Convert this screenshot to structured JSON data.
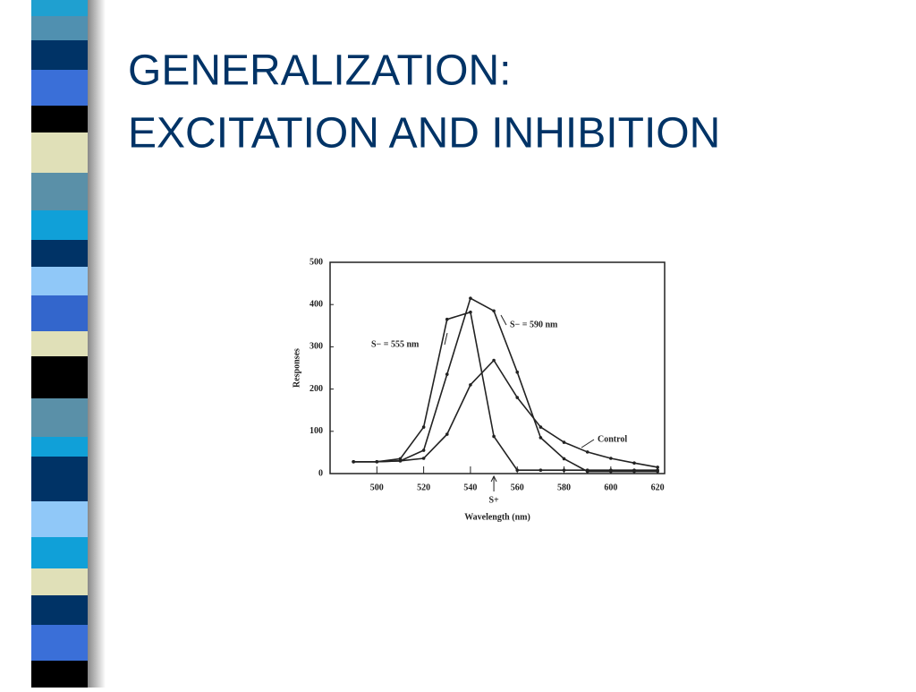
{
  "title": [
    "GENERALIZATION:",
    "EXCITATION AND INHIBITION"
  ],
  "chart_data": {
    "type": "line",
    "xlabel": "Wavelength (nm)",
    "ylabel": "Responses",
    "x": [
      490,
      500,
      510,
      520,
      530,
      540,
      550,
      560,
      570,
      580,
      590,
      600,
      610,
      620
    ],
    "series": [
      {
        "name": "S− = 555 nm",
        "color": "#222222",
        "values": [
          28,
          28,
          35,
          110,
          365,
          382,
          88,
          8,
          8,
          8,
          8,
          8,
          8,
          8
        ]
      },
      {
        "name": "S− = 590 nm",
        "color": "#222222",
        "values": [
          28,
          28,
          30,
          55,
          235,
          415,
          385,
          240,
          85,
          35,
          5,
          5,
          5,
          5
        ]
      },
      {
        "name": "Control",
        "color": "#222222",
        "values": [
          28,
          28,
          30,
          36,
          93,
          210,
          268,
          180,
          110,
          74,
          51,
          36,
          25,
          15
        ]
      }
    ],
    "annotations": [
      {
        "text": "S+",
        "x": 550
      }
    ],
    "xlim": [
      480,
      623
    ],
    "ylim": [
      0,
      500
    ],
    "xticks": [
      500,
      520,
      540,
      560,
      580,
      600,
      620
    ],
    "yticks": [
      0,
      100,
      200,
      300,
      400,
      500
    ]
  }
}
